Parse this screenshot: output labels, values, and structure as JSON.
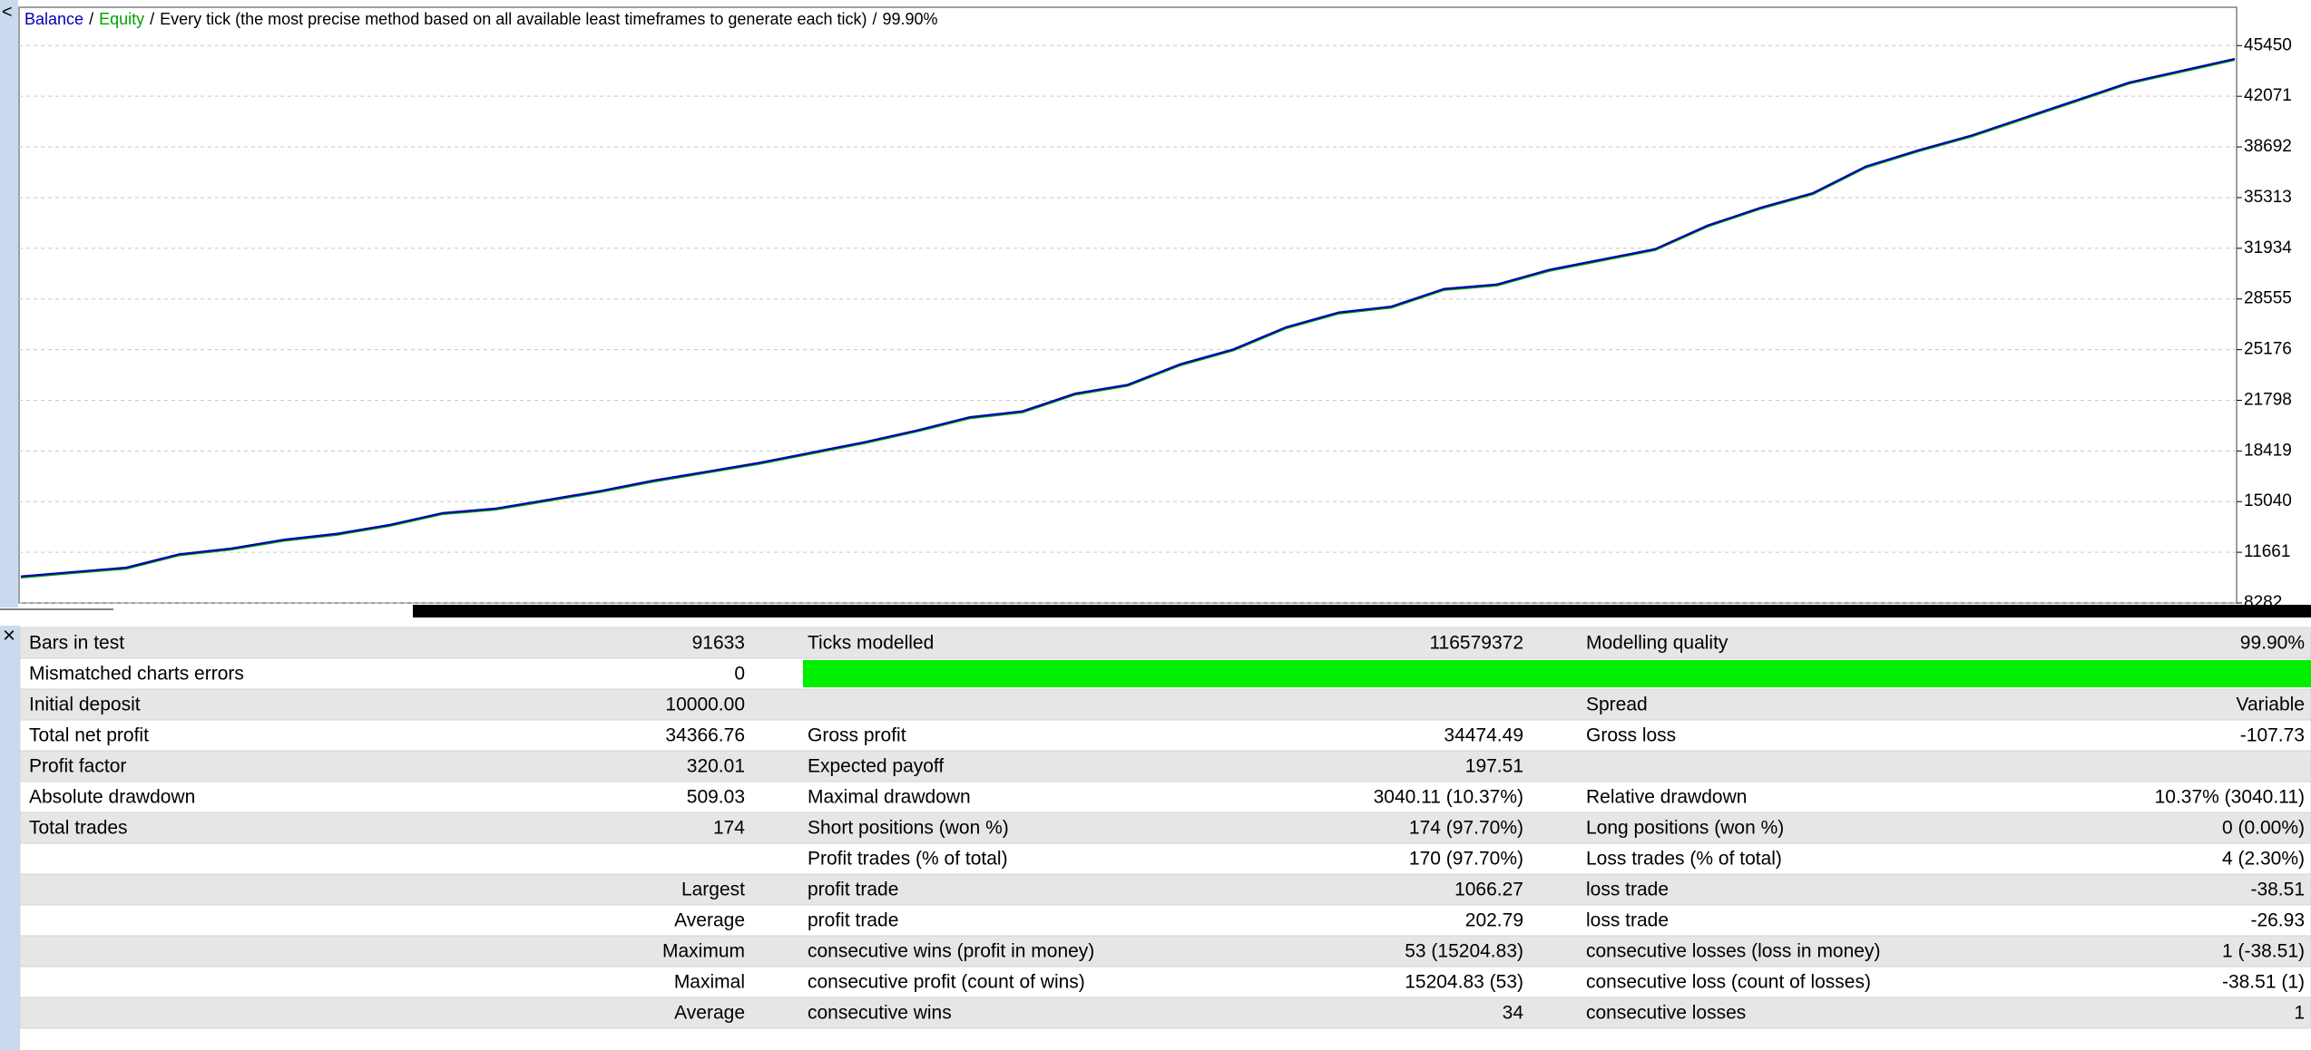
{
  "chart_data": {
    "type": "line",
    "separator": "/",
    "subtitle": "Every tick (the most precise method based on all available least timeframes to generate each tick)",
    "quality": "99.90%",
    "ylim": [
      8282,
      48007
    ],
    "yticks": [
      8282,
      11661,
      15040,
      18419,
      21798,
      25176,
      28555,
      31934,
      35313,
      38692,
      42071,
      45450
    ],
    "grid": true,
    "series": [
      {
        "name": "Equity",
        "color": "#00a000",
        "values": [
          10052,
          10347,
          10642,
          11527,
          11920,
          12510,
          12903,
          13493,
          14280,
          14577,
          15165,
          15755,
          16443,
          17033,
          17623,
          18312,
          19000,
          19786,
          20671,
          21065,
          22244,
          22835,
          24211,
          25195,
          26670,
          27654,
          28047,
          29226,
          29521,
          30505,
          31193,
          31881,
          33454,
          34634,
          35617,
          37387,
          38469,
          39452,
          40632,
          41812,
          42992,
          43779,
          44565
        ]
      },
      {
        "name": "Balance",
        "color": "#0000b4",
        "values": [
          10052,
          10347,
          10642,
          11527,
          11920,
          12510,
          12903,
          13493,
          14280,
          14577,
          15165,
          15755,
          16443,
          17033,
          17623,
          18312,
          19000,
          19786,
          20671,
          21065,
          22244,
          22835,
          24211,
          25195,
          26670,
          27654,
          28047,
          29226,
          29521,
          30505,
          31193,
          31881,
          33454,
          34634,
          35617,
          37387,
          38469,
          39452,
          40632,
          41812,
          42992,
          43779,
          44565
        ]
      }
    ]
  },
  "ui": {
    "collapse": "<",
    "close": "×"
  },
  "report": {
    "rows": [
      [
        "Bars in test",
        "91633",
        "Ticks modelled",
        "116579372",
        "Modelling quality",
        "99.90%"
      ],
      [
        "Mismatched charts errors",
        "0",
        null,
        null,
        null,
        null
      ],
      [
        "Initial deposit",
        "10000.00",
        null,
        null,
        "Spread",
        "Variable"
      ],
      [
        "Total net profit",
        "34366.76",
        "Gross profit",
        "34474.49",
        "Gross loss",
        "-107.73"
      ],
      [
        "Profit factor",
        "320.01",
        "Expected payoff",
        "197.51",
        null,
        null
      ],
      [
        "Absolute drawdown",
        "509.03",
        "Maximal drawdown",
        "3040.11 (10.37%)",
        "Relative drawdown",
        "10.37% (3040.11)"
      ],
      [
        "Total trades",
        "174",
        "Short positions (won %)",
        "174 (97.70%)",
        "Long positions (won %)",
        "0 (0.00%)"
      ],
      [
        null,
        null,
        "Profit trades (% of total)",
        "170 (97.70%)",
        "Loss trades (% of total)",
        "4 (2.30%)"
      ],
      [
        null,
        "Largest",
        "profit trade",
        "1066.27",
        "loss trade",
        "-38.51"
      ],
      [
        null,
        "Average",
        "profit trade",
        "202.79",
        "loss trade",
        "-26.93"
      ],
      [
        null,
        "Maximum",
        "consecutive wins (profit in money)",
        "53 (15204.83)",
        "consecutive losses (loss in money)",
        "1 (-38.51)"
      ],
      [
        null,
        "Maximal",
        "consecutive profit (count of wins)",
        "15204.83 (53)",
        "consecutive loss (count of losses)",
        "-38.51 (1)"
      ],
      [
        null,
        "Average",
        "consecutive wins",
        "34",
        "consecutive losses",
        "1"
      ]
    ]
  }
}
